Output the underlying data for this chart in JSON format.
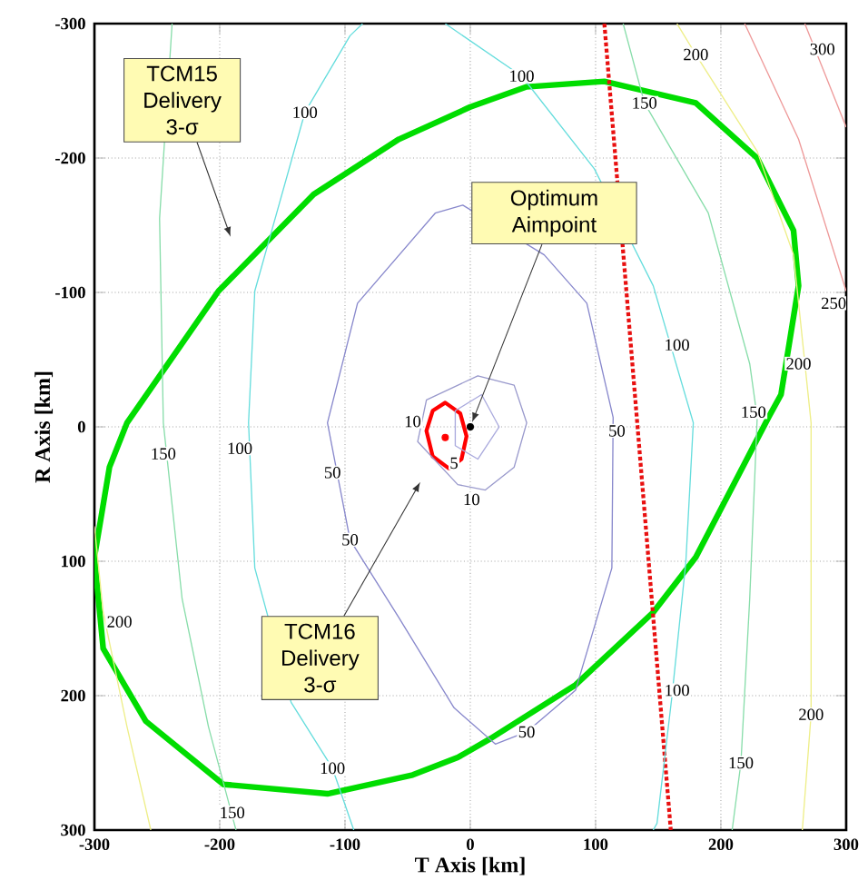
{
  "chart_data": {
    "type": "line",
    "xlabel": "T Axis [km]",
    "ylabel": "R Axis [km]",
    "xlim": [
      -300,
      300
    ],
    "ylim": [
      300,
      -300
    ],
    "xticks": [
      -300,
      -200,
      -100,
      0,
      100,
      200,
      300
    ],
    "yticks": [
      -300,
      -200,
      -100,
      0,
      100,
      200,
      300
    ],
    "grid": true,
    "series": [
      {
        "color": "#00dd00",
        "line_style": "solid",
        "x": [
          -300,
          -288,
          -274,
          -201,
          -125,
          -57,
          0,
          45,
          107,
          180,
          229,
          258,
          262,
          248,
          238,
          180,
          146,
          84,
          16,
          -10,
          -46,
          -114,
          -197,
          -259,
          -293,
          -300,
          -288
        ],
        "values": [
          97,
          30,
          -3,
          -101,
          -173,
          -214,
          -238,
          -253,
          -257,
          -241,
          -200,
          -146,
          -105,
          -24,
          -7,
          97,
          138,
          192,
          232,
          246,
          259,
          273,
          266,
          219,
          165,
          97,
          30
        ]
      },
      {
        "color": "#ff0000",
        "line_style": "solid",
        "x": [
          -20,
          -30,
          -35,
          -30,
          -17,
          -7,
          -3,
          -8,
          -20,
          -30
        ],
        "values": [
          -18,
          -12,
          3,
          22,
          31,
          24,
          7,
          -10,
          -18,
          -12
        ]
      },
      {
        "color": "#e81010",
        "line_style": "dotted",
        "x": [
          107,
          160
        ],
        "values": [
          -300,
          300
        ]
      },
      {
        "color": "#9999cc",
        "line_style": "solid",
        "x": [
          6,
          35,
          45,
          35,
          12,
          -10,
          -42,
          -35,
          6,
          35
        ],
        "values": [
          -38,
          -31,
          -3,
          30,
          47,
          43,
          11,
          -20,
          -38,
          -31
        ]
      },
      {
        "color": "#aaaadd",
        "line_style": "solid",
        "x": [
          -12,
          9,
          23,
          6,
          -12,
          -12,
          9
        ],
        "values": [
          -12,
          -24,
          0,
          24,
          14,
          -12,
          -24
        ]
      },
      {
        "color": "#8888cc",
        "line_style": "solid",
        "x": [
          -6,
          59,
          93,
          114,
          113,
          84,
          45,
          20,
          -13,
          -57,
          -96,
          -114,
          -90,
          -28,
          -6,
          59
        ],
        "values": [
          -165,
          -128,
          -92,
          -7,
          105,
          196,
          227,
          236,
          209,
          142,
          84,
          -3,
          -92,
          -159,
          -165,
          -128
        ]
      },
      {
        "color": "#66dddd",
        "line_style": "solid",
        "x": [
          -93,
          -110,
          -143,
          -172,
          -177,
          -172,
          -132,
          -96,
          -86,
          null,
          -20,
          41,
          99,
          146,
          178,
          172,
          161,
          149,
          146
        ],
        "values": [
          300,
          254,
          205,
          105,
          -3,
          -101,
          -234,
          -291,
          -300,
          null,
          -300,
          -261,
          -192,
          -105,
          -3,
          101,
          200,
          295,
          300
        ]
      },
      {
        "color": "#88ddaa",
        "line_style": "solid",
        "x": [
          -238,
          -248,
          -245,
          -230,
          -209,
          -187
        ],
        "values": [
          -300,
          -155,
          -3,
          128,
          223,
          300
        ]
      },
      {
        "color": "#88ddaa",
        "line_style": "solid",
        "x": [
          122,
          139,
          190,
          223,
          229,
          223,
          216,
          209
        ],
        "values": [
          -300,
          -241,
          -159,
          -47,
          -7,
          128,
          250,
          300
        ]
      },
      {
        "color": "#eeee88",
        "line_style": "solid",
        "x": [
          -300,
          -293,
          -274,
          -255
        ],
        "values": [
          74,
          138,
          223,
          300
        ]
      },
      {
        "color": "#eeee88",
        "line_style": "solid",
        "x": [
          165,
          180,
          229,
          258,
          272,
          272,
          265
        ],
        "values": [
          -300,
          -277,
          -205,
          -128,
          -3,
          214,
          300
        ]
      },
      {
        "color": "#ee9999",
        "line_style": "solid",
        "x": [
          219,
          262,
          300
        ],
        "values": [
          -300,
          -214,
          -101
        ]
      },
      {
        "color": "#ee9999",
        "line_style": "solid",
        "x": [
          267,
          300
        ],
        "values": [
          -300,
          -223
        ]
      },
      {
        "type": "scatter",
        "marker": "circle",
        "color": "#ff0000",
        "x": [
          -20
        ],
        "values": [
          8
        ]
      },
      {
        "type": "scatter",
        "marker": "circle",
        "color": "#000000",
        "x": [
          0
        ],
        "values": [
          0
        ]
      }
    ],
    "annotations": [
      "TCM15 Delivery 3-σ",
      {
        "text": "Optimum Aimpoint",
        "x": 0,
        "y": 0
      },
      "TCM16 Delivery 3-σ",
      {
        "text": "100",
        "x": -132,
        "y": -234
      },
      {
        "text": "100",
        "x": 41,
        "y": -261
      },
      {
        "text": "150",
        "x": 139,
        "y": -241
      },
      {
        "text": "200",
        "x": 180,
        "y": -277
      },
      {
        "text": "300",
        "x": 281,
        "y": -281
      },
      {
        "text": "250",
        "x": 290,
        "y": -92
      },
      {
        "text": "100",
        "x": 165,
        "y": -61
      },
      {
        "text": "150",
        "x": 226,
        "y": -11
      },
      {
        "text": "200",
        "x": 262,
        "y": -47
      },
      {
        "text": "50",
        "x": 117,
        "y": 3
      },
      {
        "text": "10",
        "x": -46,
        "y": -4
      },
      {
        "text": "10",
        "x": 1,
        "y": 54
      },
      {
        "text": "5",
        "x": -13,
        "y": 27
      },
      {
        "text": "150",
        "x": -245,
        "y": 20
      },
      {
        "text": "100",
        "x": -184,
        "y": 16
      },
      {
        "text": "50",
        "x": -110,
        "y": 34
      },
      {
        "text": "50",
        "x": -96,
        "y": 84
      },
      {
        "text": "200",
        "x": -280,
        "y": 145
      },
      {
        "text": "150",
        "x": -190,
        "y": 287
      },
      {
        "text": "100",
        "x": -110,
        "y": 254
      },
      {
        "text": "50",
        "x": 45,
        "y": 227
      },
      {
        "text": "100",
        "x": 165,
        "y": 196
      },
      {
        "text": "150",
        "x": 216,
        "y": 250
      },
      {
        "text": "200",
        "x": 272,
        "y": 214
      }
    ]
  }
}
